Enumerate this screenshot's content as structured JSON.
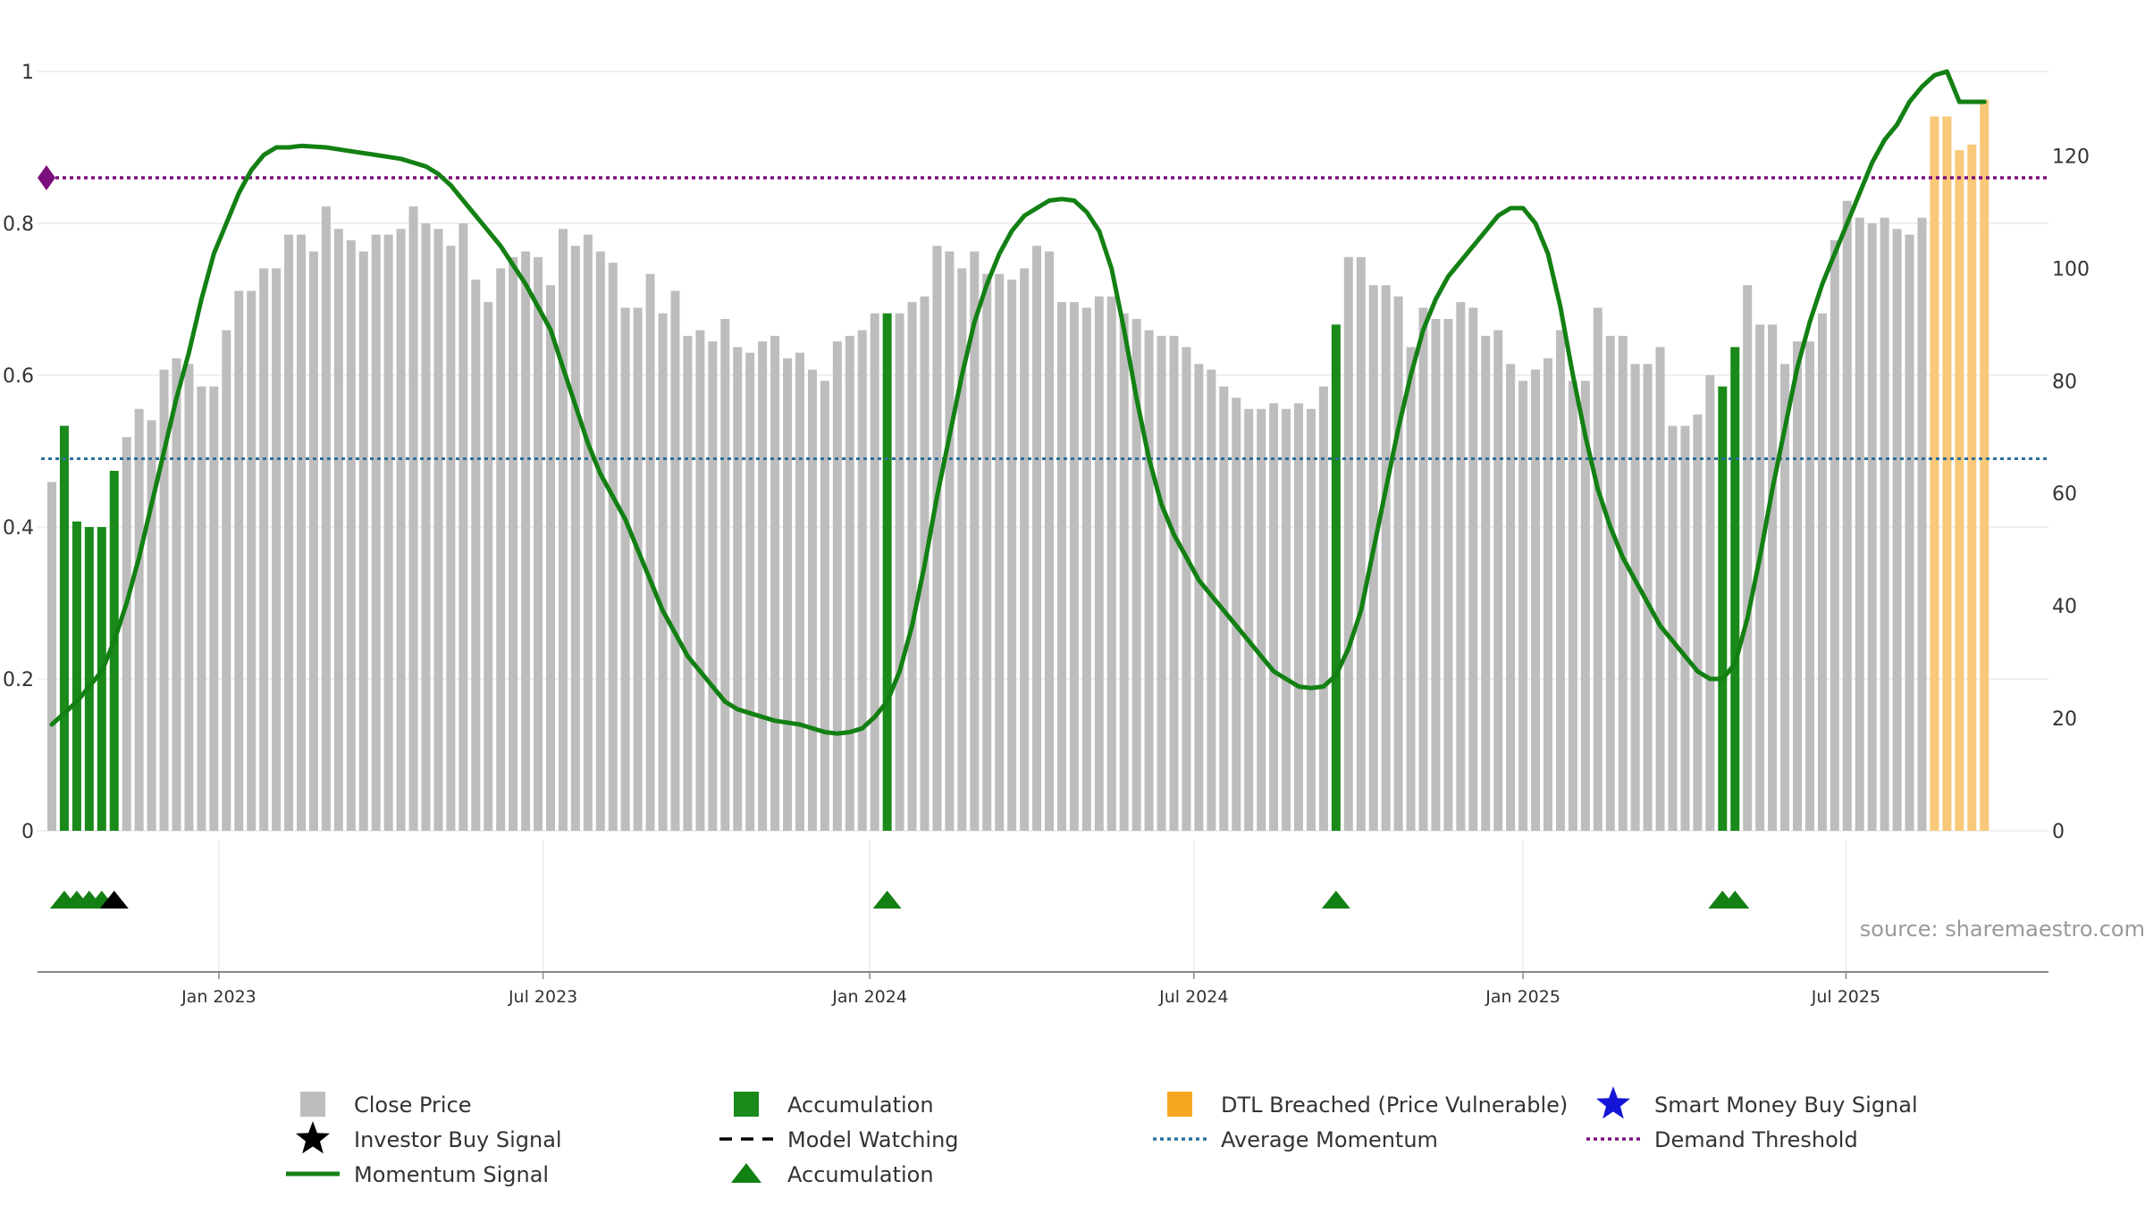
{
  "chart_data": {
    "type": "bar",
    "title": "",
    "source": "source: sharemaestro.com",
    "left_axis": {
      "ticks": [
        "0",
        "0.2",
        "0.4",
        "0.6",
        "0.8",
        "1"
      ],
      "ylim": [
        0,
        1
      ]
    },
    "right_axis": {
      "ticks": [
        "0",
        "20",
        "40",
        "60",
        "80",
        "100",
        "120"
      ],
      "ylim": [
        0,
        135
      ]
    },
    "x_axis": {
      "ticks": [
        "Jan 2023",
        "Jul 2023",
        "Jan 2024",
        "Jul 2024",
        "Jan 2025",
        "Jul 2025"
      ],
      "first_week": "2022-10-03",
      "tick_weeks": [
        13.4,
        39.4,
        65.6,
        91.6,
        118.0,
        143.9
      ]
    },
    "average_momentum": 0.49,
    "demand_threshold": 0.86,
    "price_series": [
      {
        "w": 0,
        "v": 62,
        "t": "n"
      },
      {
        "w": 1,
        "v": 72,
        "t": "a"
      },
      {
        "w": 2,
        "v": 55,
        "t": "a"
      },
      {
        "w": 3,
        "v": 54,
        "t": "a"
      },
      {
        "w": 4,
        "v": 54,
        "t": "a"
      },
      {
        "w": 5,
        "v": 64,
        "t": "a"
      },
      {
        "w": 6,
        "v": 70,
        "t": "n"
      },
      {
        "w": 7,
        "v": 75,
        "t": "n"
      },
      {
        "w": 8,
        "v": 73,
        "t": "n"
      },
      {
        "w": 9,
        "v": 82,
        "t": "n"
      },
      {
        "w": 10,
        "v": 84,
        "t": "n"
      },
      {
        "w": 11,
        "v": 83,
        "t": "n"
      },
      {
        "w": 12,
        "v": 79,
        "t": "n"
      },
      {
        "w": 13,
        "v": 79,
        "t": "n"
      },
      {
        "w": 14,
        "v": 89,
        "t": "n"
      },
      {
        "w": 15,
        "v": 96,
        "t": "n"
      },
      {
        "w": 16,
        "v": 96,
        "t": "n"
      },
      {
        "w": 17,
        "v": 100,
        "t": "n"
      },
      {
        "w": 18,
        "v": 100,
        "t": "n"
      },
      {
        "w": 19,
        "v": 106,
        "t": "n"
      },
      {
        "w": 20,
        "v": 106,
        "t": "n"
      },
      {
        "w": 21,
        "v": 103,
        "t": "n"
      },
      {
        "w": 22,
        "v": 111,
        "t": "n"
      },
      {
        "w": 23,
        "v": 107,
        "t": "n"
      },
      {
        "w": 24,
        "v": 105,
        "t": "n"
      },
      {
        "w": 25,
        "v": 103,
        "t": "n"
      },
      {
        "w": 26,
        "v": 106,
        "t": "n"
      },
      {
        "w": 27,
        "v": 106,
        "t": "n"
      },
      {
        "w": 28,
        "v": 107,
        "t": "n"
      },
      {
        "w": 29,
        "v": 111,
        "t": "n"
      },
      {
        "w": 30,
        "v": 108,
        "t": "n"
      },
      {
        "w": 31,
        "v": 107,
        "t": "n"
      },
      {
        "w": 32,
        "v": 104,
        "t": "n"
      },
      {
        "w": 33,
        "v": 108,
        "t": "n"
      },
      {
        "w": 34,
        "v": 98,
        "t": "n"
      },
      {
        "w": 35,
        "v": 94,
        "t": "n"
      },
      {
        "w": 36,
        "v": 100,
        "t": "n"
      },
      {
        "w": 37,
        "v": 102,
        "t": "n"
      },
      {
        "w": 38,
        "v": 103,
        "t": "n"
      },
      {
        "w": 39,
        "v": 102,
        "t": "n"
      },
      {
        "w": 40,
        "v": 97,
        "t": "n"
      },
      {
        "w": 41,
        "v": 107,
        "t": "n"
      },
      {
        "w": 42,
        "v": 104,
        "t": "n"
      },
      {
        "w": 43,
        "v": 106,
        "t": "n"
      },
      {
        "w": 44,
        "v": 103,
        "t": "n"
      },
      {
        "w": 45,
        "v": 101,
        "t": "n"
      },
      {
        "w": 46,
        "v": 93,
        "t": "n"
      },
      {
        "w": 47,
        "v": 93,
        "t": "n"
      },
      {
        "w": 48,
        "v": 99,
        "t": "n"
      },
      {
        "w": 49,
        "v": 92,
        "t": "n"
      },
      {
        "w": 50,
        "v": 96,
        "t": "n"
      },
      {
        "w": 51,
        "v": 88,
        "t": "n"
      },
      {
        "w": 52,
        "v": 89,
        "t": "n"
      },
      {
        "w": 53,
        "v": 87,
        "t": "n"
      },
      {
        "w": 54,
        "v": 91,
        "t": "n"
      },
      {
        "w": 55,
        "v": 86,
        "t": "n"
      },
      {
        "w": 56,
        "v": 85,
        "t": "n"
      },
      {
        "w": 57,
        "v": 87,
        "t": "n"
      },
      {
        "w": 58,
        "v": 88,
        "t": "n"
      },
      {
        "w": 59,
        "v": 84,
        "t": "n"
      },
      {
        "w": 60,
        "v": 85,
        "t": "n"
      },
      {
        "w": 61,
        "v": 82,
        "t": "n"
      },
      {
        "w": 62,
        "v": 80,
        "t": "n"
      },
      {
        "w": 63,
        "v": 87,
        "t": "n"
      },
      {
        "w": 64,
        "v": 88,
        "t": "n"
      },
      {
        "w": 65,
        "v": 89,
        "t": "n"
      },
      {
        "w": 66,
        "v": 92,
        "t": "n"
      },
      {
        "w": 67,
        "v": 92,
        "t": "a"
      },
      {
        "w": 68,
        "v": 92,
        "t": "n"
      },
      {
        "w": 69,
        "v": 94,
        "t": "n"
      },
      {
        "w": 70,
        "v": 95,
        "t": "n"
      },
      {
        "w": 71,
        "v": 104,
        "t": "n"
      },
      {
        "w": 72,
        "v": 103,
        "t": "n"
      },
      {
        "w": 73,
        "v": 100,
        "t": "n"
      },
      {
        "w": 74,
        "v": 103,
        "t": "n"
      },
      {
        "w": 75,
        "v": 99,
        "t": "n"
      },
      {
        "w": 76,
        "v": 99,
        "t": "n"
      },
      {
        "w": 77,
        "v": 98,
        "t": "n"
      },
      {
        "w": 78,
        "v": 100,
        "t": "n"
      },
      {
        "w": 79,
        "v": 104,
        "t": "n"
      },
      {
        "w": 80,
        "v": 103,
        "t": "n"
      },
      {
        "w": 81,
        "v": 94,
        "t": "n"
      },
      {
        "w": 82,
        "v": 94,
        "t": "n"
      },
      {
        "w": 83,
        "v": 93,
        "t": "n"
      },
      {
        "w": 84,
        "v": 95,
        "t": "n"
      },
      {
        "w": 85,
        "v": 95,
        "t": "n"
      },
      {
        "w": 86,
        "v": 92,
        "t": "n"
      },
      {
        "w": 87,
        "v": 91,
        "t": "n"
      },
      {
        "w": 88,
        "v": 89,
        "t": "n"
      },
      {
        "w": 89,
        "v": 88,
        "t": "n"
      },
      {
        "w": 90,
        "v": 88,
        "t": "n"
      },
      {
        "w": 91,
        "v": 86,
        "t": "n"
      },
      {
        "w": 92,
        "v": 83,
        "t": "n"
      },
      {
        "w": 93,
        "v": 82,
        "t": "n"
      },
      {
        "w": 94,
        "v": 79,
        "t": "n"
      },
      {
        "w": 95,
        "v": 77,
        "t": "n"
      },
      {
        "w": 96,
        "v": 75,
        "t": "n"
      },
      {
        "w": 97,
        "v": 75,
        "t": "n"
      },
      {
        "w": 98,
        "v": 76,
        "t": "n"
      },
      {
        "w": 99,
        "v": 75,
        "t": "n"
      },
      {
        "w": 100,
        "v": 76,
        "t": "n"
      },
      {
        "w": 101,
        "v": 75,
        "t": "n"
      },
      {
        "w": 102,
        "v": 79,
        "t": "n"
      },
      {
        "w": 103,
        "v": 90,
        "t": "a"
      },
      {
        "w": 104,
        "v": 102,
        "t": "n"
      },
      {
        "w": 105,
        "v": 102,
        "t": "n"
      },
      {
        "w": 106,
        "v": 97,
        "t": "n"
      },
      {
        "w": 107,
        "v": 97,
        "t": "n"
      },
      {
        "w": 108,
        "v": 95,
        "t": "n"
      },
      {
        "w": 109,
        "v": 86,
        "t": "n"
      },
      {
        "w": 110,
        "v": 93,
        "t": "n"
      },
      {
        "w": 111,
        "v": 91,
        "t": "n"
      },
      {
        "w": 112,
        "v": 91,
        "t": "n"
      },
      {
        "w": 113,
        "v": 94,
        "t": "n"
      },
      {
        "w": 114,
        "v": 93,
        "t": "n"
      },
      {
        "w": 115,
        "v": 88,
        "t": "n"
      },
      {
        "w": 116,
        "v": 89,
        "t": "n"
      },
      {
        "w": 117,
        "v": 83,
        "t": "n"
      },
      {
        "w": 118,
        "v": 80,
        "t": "n"
      },
      {
        "w": 119,
        "v": 82,
        "t": "n"
      },
      {
        "w": 120,
        "v": 84,
        "t": "n"
      },
      {
        "w": 121,
        "v": 89,
        "t": "n"
      },
      {
        "w": 122,
        "v": 80,
        "t": "n"
      },
      {
        "w": 123,
        "v": 80,
        "t": "n"
      },
      {
        "w": 124,
        "v": 93,
        "t": "n"
      },
      {
        "w": 125,
        "v": 88,
        "t": "n"
      },
      {
        "w": 126,
        "v": 88,
        "t": "n"
      },
      {
        "w": 127,
        "v": 83,
        "t": "n"
      },
      {
        "w": 128,
        "v": 83,
        "t": "n"
      },
      {
        "w": 129,
        "v": 86,
        "t": "n"
      },
      {
        "w": 130,
        "v": 72,
        "t": "n"
      },
      {
        "w": 131,
        "v": 72,
        "t": "n"
      },
      {
        "w": 132,
        "v": 74,
        "t": "n"
      },
      {
        "w": 133,
        "v": 81,
        "t": "n"
      },
      {
        "w": 134,
        "v": 79,
        "t": "a"
      },
      {
        "w": 135,
        "v": 86,
        "t": "a"
      },
      {
        "w": 136,
        "v": 97,
        "t": "n"
      },
      {
        "w": 137,
        "v": 90,
        "t": "n"
      },
      {
        "w": 138,
        "v": 90,
        "t": "n"
      },
      {
        "w": 139,
        "v": 83,
        "t": "n"
      },
      {
        "w": 140,
        "v": 87,
        "t": "n"
      },
      {
        "w": 141,
        "v": 87,
        "t": "n"
      },
      {
        "w": 142,
        "v": 92,
        "t": "n"
      },
      {
        "w": 143,
        "v": 105,
        "t": "n"
      },
      {
        "w": 144,
        "v": 112,
        "t": "n"
      },
      {
        "w": 145,
        "v": 109,
        "t": "n"
      },
      {
        "w": 146,
        "v": 108,
        "t": "n"
      },
      {
        "w": 147,
        "v": 109,
        "t": "n"
      },
      {
        "w": 148,
        "v": 107,
        "t": "n"
      },
      {
        "w": 149,
        "v": 106,
        "t": "n"
      },
      {
        "w": 150,
        "v": 109,
        "t": "n"
      },
      {
        "w": 151,
        "v": 127,
        "t": "d"
      },
      {
        "w": 152,
        "v": 127,
        "t": "d"
      },
      {
        "w": 153,
        "v": 121,
        "t": "d"
      },
      {
        "w": 154,
        "v": 122,
        "t": "d"
      },
      {
        "w": 155,
        "v": 130,
        "t": "d"
      }
    ],
    "momentum_signal": [
      [
        0,
        0.14
      ],
      [
        2,
        0.17
      ],
      [
        3,
        0.19
      ],
      [
        4,
        0.21
      ],
      [
        5,
        0.25
      ],
      [
        6,
        0.3
      ],
      [
        7,
        0.36
      ],
      [
        8,
        0.43
      ],
      [
        9,
        0.5
      ],
      [
        10,
        0.57
      ],
      [
        11,
        0.63
      ],
      [
        12,
        0.7
      ],
      [
        13,
        0.76
      ],
      [
        14,
        0.8
      ],
      [
        15,
        0.84
      ],
      [
        16,
        0.87
      ],
      [
        17,
        0.89
      ],
      [
        18,
        0.9
      ],
      [
        19,
        0.9
      ],
      [
        20,
        0.902
      ],
      [
        22,
        0.9
      ],
      [
        24,
        0.895
      ],
      [
        26,
        0.89
      ],
      [
        28,
        0.885
      ],
      [
        29,
        0.88
      ],
      [
        30,
        0.875
      ],
      [
        31,
        0.865
      ],
      [
        32,
        0.85
      ],
      [
        33,
        0.83
      ],
      [
        34,
        0.81
      ],
      [
        35,
        0.79
      ],
      [
        36,
        0.77
      ],
      [
        37,
        0.745
      ],
      [
        38,
        0.72
      ],
      [
        39,
        0.69
      ],
      [
        40,
        0.66
      ],
      [
        41,
        0.61
      ],
      [
        42,
        0.56
      ],
      [
        43,
        0.51
      ],
      [
        44,
        0.47
      ],
      [
        45,
        0.44
      ],
      [
        46,
        0.41
      ],
      [
        47,
        0.37
      ],
      [
        48,
        0.33
      ],
      [
        49,
        0.29
      ],
      [
        50,
        0.26
      ],
      [
        51,
        0.23
      ],
      [
        52,
        0.21
      ],
      [
        53,
        0.19
      ],
      [
        54,
        0.17
      ],
      [
        55,
        0.16
      ],
      [
        56,
        0.155
      ],
      [
        58,
        0.145
      ],
      [
        60,
        0.14
      ],
      [
        62,
        0.13
      ],
      [
        63,
        0.128
      ],
      [
        64,
        0.13
      ],
      [
        65,
        0.135
      ],
      [
        66,
        0.15
      ],
      [
        67,
        0.17
      ],
      [
        68,
        0.21
      ],
      [
        69,
        0.27
      ],
      [
        70,
        0.35
      ],
      [
        71,
        0.44
      ],
      [
        72,
        0.52
      ],
      [
        73,
        0.6
      ],
      [
        74,
        0.67
      ],
      [
        75,
        0.72
      ],
      [
        76,
        0.76
      ],
      [
        77,
        0.79
      ],
      [
        78,
        0.81
      ],
      [
        79,
        0.82
      ],
      [
        80,
        0.83
      ],
      [
        81,
        0.832
      ],
      [
        82,
        0.83
      ],
      [
        83,
        0.815
      ],
      [
        84,
        0.79
      ],
      [
        85,
        0.74
      ],
      [
        86,
        0.66
      ],
      [
        87,
        0.57
      ],
      [
        88,
        0.49
      ],
      [
        89,
        0.43
      ],
      [
        90,
        0.39
      ],
      [
        91,
        0.36
      ],
      [
        92,
        0.33
      ],
      [
        93,
        0.31
      ],
      [
        94,
        0.29
      ],
      [
        95,
        0.27
      ],
      [
        96,
        0.25
      ],
      [
        97,
        0.23
      ],
      [
        98,
        0.21
      ],
      [
        99,
        0.2
      ],
      [
        100,
        0.19
      ],
      [
        101,
        0.188
      ],
      [
        102,
        0.19
      ],
      [
        103,
        0.205
      ],
      [
        104,
        0.24
      ],
      [
        105,
        0.29
      ],
      [
        106,
        0.37
      ],
      [
        107,
        0.45
      ],
      [
        108,
        0.53
      ],
      [
        109,
        0.6
      ],
      [
        110,
        0.66
      ],
      [
        111,
        0.7
      ],
      [
        112,
        0.73
      ],
      [
        113,
        0.75
      ],
      [
        114,
        0.77
      ],
      [
        115,
        0.79
      ],
      [
        116,
        0.81
      ],
      [
        117,
        0.82
      ],
      [
        118,
        0.82
      ],
      [
        119,
        0.8
      ],
      [
        120,
        0.76
      ],
      [
        121,
        0.69
      ],
      [
        122,
        0.6
      ],
      [
        123,
        0.52
      ],
      [
        124,
        0.45
      ],
      [
        125,
        0.4
      ],
      [
        126,
        0.36
      ],
      [
        127,
        0.33
      ],
      [
        128,
        0.3
      ],
      [
        129,
        0.27
      ],
      [
        130,
        0.25
      ],
      [
        131,
        0.23
      ],
      [
        132,
        0.21
      ],
      [
        133,
        0.2
      ],
      [
        134,
        0.2
      ],
      [
        135,
        0.22
      ],
      [
        136,
        0.28
      ],
      [
        137,
        0.36
      ],
      [
        138,
        0.45
      ],
      [
        139,
        0.53
      ],
      [
        140,
        0.61
      ],
      [
        141,
        0.67
      ],
      [
        142,
        0.72
      ],
      [
        143,
        0.76
      ],
      [
        144,
        0.8
      ],
      [
        145,
        0.84
      ],
      [
        146,
        0.88
      ],
      [
        147,
        0.91
      ],
      [
        148,
        0.93
      ],
      [
        149,
        0.96
      ],
      [
        150,
        0.98
      ],
      [
        151,
        0.995
      ],
      [
        152,
        1.0
      ],
      [
        153,
        0.96
      ],
      [
        154,
        0.96
      ],
      [
        155,
        0.96
      ]
    ],
    "signal_markers": [
      {
        "w": 1,
        "kind": "accumulation"
      },
      {
        "w": 2,
        "kind": "accumulation"
      },
      {
        "w": 3,
        "kind": "accumulation"
      },
      {
        "w": 4,
        "kind": "accumulation"
      },
      {
        "w": 5,
        "kind": "investor"
      },
      {
        "w": 67,
        "kind": "accumulation"
      },
      {
        "w": 103,
        "kind": "accumulation"
      },
      {
        "w": 134,
        "kind": "accumulation"
      },
      {
        "w": 135,
        "kind": "accumulation"
      }
    ],
    "legend": [
      {
        "label": "Close Price",
        "symbol": "square",
        "color": "#bdbdbd"
      },
      {
        "label": "Accumulation",
        "symbol": "square",
        "color": "#1a8a1a"
      },
      {
        "label": "DTL Breached (Price Vulnerable)",
        "symbol": "square",
        "color": "#f7a823"
      },
      {
        "label": "Smart Money Buy Signal",
        "symbol": "star",
        "color": "#1515d8"
      },
      {
        "label": "Investor Buy Signal",
        "symbol": "star",
        "color": "#000000"
      },
      {
        "label": "Model Watching",
        "symbol": "dash",
        "color": "#000000"
      },
      {
        "label": "Average Momentum",
        "symbol": "dot",
        "color": "#2b6f9c"
      },
      {
        "label": "Demand Threshold",
        "symbol": "dot",
        "color": "#7b0f7b"
      },
      {
        "label": "Momentum Signal",
        "symbol": "line",
        "color": "#138013"
      },
      {
        "label": "Accumulation",
        "symbol": "triangle",
        "color": "#138013"
      }
    ],
    "colors": {
      "neutral_bar": "#bdbdbd",
      "accumulation_bar": "#1a8a1a",
      "dtl_bar": "#f9c878",
      "momentum_line": "#138013",
      "average_line": "#2b6f9c",
      "threshold_line": "#7b0f7b"
    }
  }
}
